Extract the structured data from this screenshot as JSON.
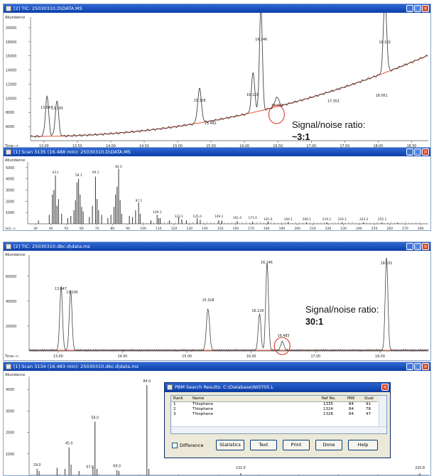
{
  "panel1": {
    "title": "[2] TIC: 25030310.D\\DATA.MS",
    "ylabel": "Abundance",
    "xlabel": "Time-->",
    "yticks": [
      "20000",
      "18000",
      "16000",
      "14000",
      "12000",
      "10000",
      "8000",
      "6000"
    ],
    "xticks": [
      "13.00",
      "13.50",
      "14.00",
      "14.50",
      "15.00",
      "15.50",
      "16.00",
      "16.50",
      "17.00",
      "17.50",
      "18.00",
      "18.50"
    ],
    "peaks": [
      {
        "rt": "13.047",
        "label": "13.047"
      },
      {
        "rt": "13.195",
        "label": "13.195"
      },
      {
        "rt": "15.328",
        "label": "15.328"
      },
      {
        "rt": "15.492",
        "label": "15.492"
      },
      {
        "rt": "16.129",
        "label": "16.129"
      },
      {
        "rt": "16.246",
        "label": "16.246"
      },
      {
        "rt": "16.483",
        "label": "16.483"
      },
      {
        "rt": "17.353",
        "label": "17.353"
      },
      {
        "rt": "18.102",
        "label": "18.102"
      },
      {
        "rt": "18.061",
        "label": "18.061"
      }
    ]
  },
  "panel2": {
    "title": "[1] Scan 3135 (16.488 min): 25030310.D\\DATA.MS",
    "ylabel": "Abundance",
    "xlabel": "m/z-->",
    "yticks": [
      "5000",
      "4000",
      "3000",
      "2000",
      "1000"
    ],
    "xticks": [
      "30",
      "40",
      "50",
      "60",
      "70",
      "80",
      "90",
      "100",
      "110",
      "120",
      "130",
      "140",
      "150",
      "160",
      "170",
      "180",
      "190",
      "200",
      "210",
      "220",
      "230",
      "240",
      "250",
      "260",
      "270",
      "280"
    ],
    "peak_labels": [
      "43.1",
      "58.1",
      "69.1",
      "84.0",
      "97.1",
      "109.1",
      "123.1",
      "135.0",
      "149.1",
      "161.0",
      "171.0",
      "181.0",
      "194.1",
      "206.1",
      "219.1",
      "229.1",
      "243.2",
      "255.1"
    ]
  },
  "panel3": {
    "title": "[2] TIC: 25030310.dbc.d\\data.ms",
    "ylabel": "Abundance",
    "xlabel": "Time-->",
    "yticks": [
      "60000",
      "40000",
      "20000"
    ],
    "xticks": [
      "13.00",
      "14.00",
      "15.00",
      "16.00",
      "17.00",
      "18.00"
    ],
    "peak_labels": [
      "13.047",
      "13.195",
      "15.328",
      "16.129",
      "16.246",
      "16.483",
      "18.101"
    ]
  },
  "panel4": {
    "title": "[1] Scan 3134 (16.483 min): 25030310.dbc.d\\data.ms",
    "ylabel": "Abundance",
    "yticks": [
      "4000",
      "3000",
      "2000",
      "1000"
    ],
    "peak_labels": [
      "29.0",
      "45.0",
      "58.0",
      "57.0",
      "69.0",
      "84.0",
      "131.0",
      "220.8"
    ]
  },
  "annotations": {
    "top_label": "Signal/noise ratio:",
    "top_value": "~3:1",
    "bottom_label": "Signal/noise ratio:",
    "bottom_value": "30:1"
  },
  "dialog": {
    "title": "PBM Search Results: C:\\Database\\NIST05.L",
    "headers": [
      "Rank",
      "Name",
      "Ref No.",
      "MW",
      "Qual"
    ],
    "rows": [
      {
        "rank": "1",
        "name": "Thiophene",
        "ref": "1335",
        "mw": "84",
        "qual": "91"
      },
      {
        "rank": "2",
        "name": "Thiophene",
        "ref": "1324",
        "mw": "84",
        "qual": "78"
      },
      {
        "rank": "3",
        "name": "Thiophene",
        "ref": "1326",
        "mw": "84",
        "qual": "47"
      }
    ],
    "difference_label": "Difference",
    "buttons": [
      "Statistics",
      "Text",
      "Print",
      "Done",
      "Help"
    ]
  },
  "colors": {
    "titlebar": "#0b3fa8",
    "trace": "#444444",
    "baseline": "#e8553a",
    "highlight_circle": "#d63a2a"
  }
}
